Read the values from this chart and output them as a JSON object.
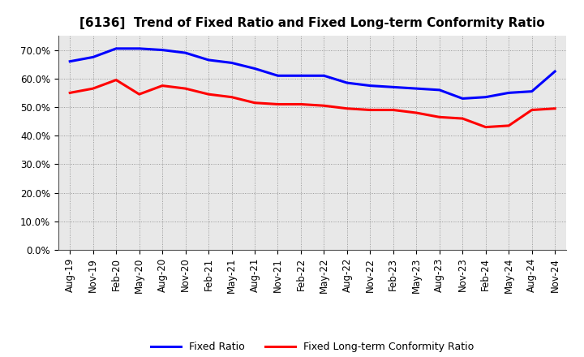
{
  "title": "[6136]  Trend of Fixed Ratio and Fixed Long-term Conformity Ratio",
  "x_labels": [
    "Aug-19",
    "Nov-19",
    "Feb-20",
    "May-20",
    "Aug-20",
    "Nov-20",
    "Feb-21",
    "May-21",
    "Aug-21",
    "Nov-21",
    "Feb-22",
    "May-22",
    "Aug-22",
    "Nov-22",
    "Feb-23",
    "May-23",
    "Aug-23",
    "Nov-23",
    "Feb-24",
    "May-24",
    "Aug-24",
    "Nov-24"
  ],
  "fixed_ratio": [
    66.0,
    67.5,
    70.5,
    70.5,
    70.0,
    69.0,
    66.5,
    65.5,
    63.5,
    61.0,
    61.0,
    61.0,
    58.5,
    57.5,
    57.0,
    56.5,
    56.0,
    53.0,
    53.5,
    55.0,
    55.5,
    62.5
  ],
  "fixed_lt_ratio": [
    55.0,
    56.5,
    59.5,
    54.5,
    57.5,
    56.5,
    54.5,
    53.5,
    51.5,
    51.0,
    51.0,
    50.5,
    49.5,
    49.0,
    49.0,
    48.0,
    46.5,
    46.0,
    43.0,
    43.5,
    49.0,
    49.5
  ],
  "fixed_ratio_color": "#0000FF",
  "fixed_lt_ratio_color": "#FF0000",
  "ylim": [
    0,
    75
  ],
  "yticks": [
    0,
    10,
    20,
    30,
    40,
    50,
    60,
    70
  ],
  "plot_bg_color": "#E8E8E8",
  "fig_bg_color": "#FFFFFF",
  "grid_color": "#888888",
  "legend_fixed_ratio": "Fixed Ratio",
  "legend_fixed_lt_ratio": "Fixed Long-term Conformity Ratio",
  "title_fontsize": 11,
  "tick_fontsize": 8.5,
  "legend_fontsize": 9,
  "linewidth": 2.2
}
